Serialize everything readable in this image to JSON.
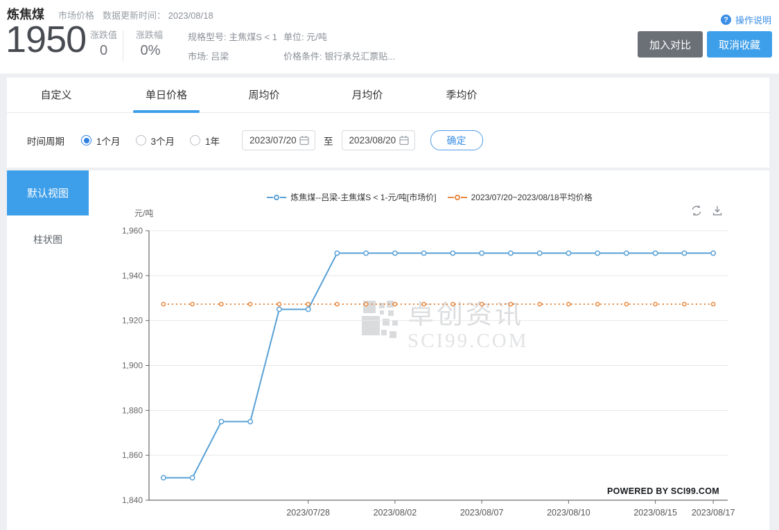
{
  "colors": {
    "accent": "#3d9ee9",
    "gray_button": "#6b7077",
    "link_blue": "#3a8ee6",
    "radio_blue": "#2f82e3",
    "series_line": "#57a0d5",
    "average_line": "#e8873d"
  },
  "header": {
    "title": "炼焦煤",
    "category": "市场价格",
    "update_label": "数据更新时间：",
    "update_date": "2023/08/18",
    "price": "1950",
    "change_value_label": "涨跌值",
    "change_value": "0",
    "change_pct_label": "涨跌幅",
    "change_pct": "0%",
    "spec": "规格型号: 主焦煤S < 1",
    "market": "市场: 吕梁",
    "unit": "单位: 元/吨",
    "condition": "价格条件: 银行承兑汇票贴...",
    "help_icon": "?",
    "help": "操作说明",
    "compare_button": "加入对比",
    "unfavorite_button": "取消收藏"
  },
  "tabs": [
    {
      "label": "自定义",
      "active": false
    },
    {
      "label": "单日价格",
      "active": true
    },
    {
      "label": "周均价",
      "active": false
    },
    {
      "label": "月均价",
      "active": false
    },
    {
      "label": "季均价",
      "active": false
    }
  ],
  "filter": {
    "label": "时间周期",
    "options": [
      {
        "label": "1个月",
        "selected": true
      },
      {
        "label": "3个月",
        "selected": false
      },
      {
        "label": "1年",
        "selected": false
      }
    ],
    "start_date": "2023/07/20",
    "to": "至",
    "end_date": "2023/08/20",
    "confirm": "确定"
  },
  "sidebar": {
    "default_view": "默认视图",
    "bar_view": "柱状图"
  },
  "chart": {
    "watermark_cn": "卓创资讯",
    "watermark_en": "SCI99.COM",
    "powered_by": "POWERED BY SCI99.COM"
  },
  "chart_data": {
    "type": "line",
    "title": "",
    "xlabel": "",
    "ylabel": "元/吨",
    "ylim": [
      1840,
      1960
    ],
    "y_ticks": [
      1840,
      1860,
      1880,
      1900,
      1920,
      1940,
      1960
    ],
    "grid": true,
    "legend_position": "top",
    "categories": [
      "2023/07/21",
      "2023/07/24",
      "2023/07/25",
      "2023/07/26",
      "2023/07/27",
      "2023/07/28",
      "2023/07/31",
      "2023/08/01",
      "2023/08/02",
      "2023/08/03",
      "2023/08/04",
      "2023/08/07",
      "2023/08/08",
      "2023/08/09",
      "2023/08/10",
      "2023/08/11",
      "2023/08/14",
      "2023/08/15",
      "2023/08/16",
      "2023/08/17"
    ],
    "x_tick_indices": [
      5,
      8,
      11,
      14,
      17,
      19
    ],
    "x_tick_labels": [
      "2023/07/28",
      "2023/08/02",
      "2023/08/07",
      "2023/08/10",
      "2023/08/15",
      "2023/08/17"
    ],
    "series": [
      {
        "name": "炼焦煤--吕梁-主焦煤S < 1-元/吨[市场价]",
        "color": "#57a0d5",
        "line_style": "solid",
        "values": [
          1850,
          1850,
          1875,
          1875,
          1925,
          1925,
          1950,
          1950,
          1950,
          1950,
          1950,
          1950,
          1950,
          1950,
          1950,
          1950,
          1950,
          1950,
          1950,
          1950
        ]
      },
      {
        "name": "2023/07/20~2023/08/18平均价格",
        "color": "#e8873d",
        "line_style": "dotted",
        "constant_value": 1927.3
      }
    ]
  }
}
